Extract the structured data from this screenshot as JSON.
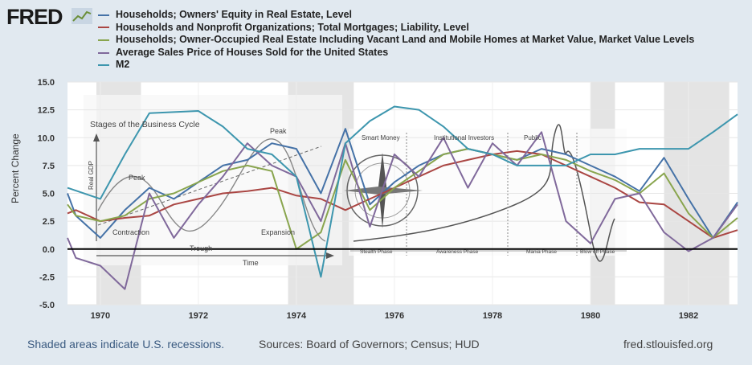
{
  "brand": {
    "logo_text": "FRED"
  },
  "legend": [
    {
      "name": "Households; Owners' Equity in Real Estate, Level",
      "color": "#4572a7"
    },
    {
      "name": "Households and Nonprofit Organizations; Total Mortgages; Liability, Level",
      "color": "#aa4643"
    },
    {
      "name": "Households; Owner-Occupied Real Estate Including Vacant Land and Mobile Homes at Market Value, Market Value Levels",
      "color": "#89a54e"
    },
    {
      "name": "Average Sales Price of Houses Sold for the United States",
      "color": "#80699b"
    },
    {
      "name": "M2",
      "color": "#3d96ae"
    }
  ],
  "footer": {
    "recession_note": "Shaded areas indicate U.S. recessions.",
    "sources": "Sources: Board of Governors; Census; HUD",
    "site": "fred.stlouisfed.org"
  },
  "overlay_labels": {
    "cycle_title": "Stages of the Business Cycle",
    "peak_left": "Peak",
    "peak_right": "Peak",
    "contraction": "Contraction",
    "expansion": "Expansion",
    "trough": "Trough",
    "time": "Time",
    "real_gdp": "Real GDP",
    "smart_money": "Smart Money",
    "institutional": "Institutional Investors",
    "public": "Public",
    "stealth": "Stealth Phase",
    "awareness": "Awareness Phase",
    "mania": "Mania Phase",
    "blowoff": "Blow off Phase"
  },
  "chart_data": {
    "type": "line",
    "ylabel": "Percent Change",
    "xlim": [
      1969.33,
      1983.0
    ],
    "ylim": [
      -5.0,
      15.0
    ],
    "x_ticks": [
      1970,
      1972,
      1974,
      1976,
      1978,
      1980,
      1982
    ],
    "x_tick_labels": [
      "1970",
      "1972",
      "1974",
      "1976",
      "1978",
      "1980",
      "1982"
    ],
    "y_ticks": [
      -5.0,
      -2.5,
      0.0,
      2.5,
      5.0,
      7.5,
      10.0,
      12.5,
      15.0
    ],
    "y_tick_labels": [
      "-5.0",
      "-2.5",
      "0.0",
      "2.5",
      "5.0",
      "7.5",
      "10.0",
      "12.5",
      "15.0"
    ],
    "grid": true,
    "recessions": [
      [
        1969.92,
        1970.83
      ],
      [
        1973.83,
        1975.17
      ],
      [
        1980.0,
        1980.5
      ],
      [
        1981.5,
        1982.83
      ]
    ],
    "series": [
      {
        "name": "Households; Owners' Equity in Real Estate, Level",
        "color": "#4572a7",
        "x": [
          1969.33,
          1969.5,
          1970.0,
          1970.5,
          1971.0,
          1971.5,
          1972.0,
          1972.5,
          1973.0,
          1973.5,
          1974.0,
          1974.5,
          1975.0,
          1975.5,
          1976.0,
          1976.5,
          1977.0,
          1977.5,
          1978.0,
          1978.5,
          1979.0,
          1979.5,
          1980.0,
          1980.5,
          1981.0,
          1981.5,
          1982.0,
          1982.5,
          1983.0
        ],
        "y": [
          5.0,
          3.0,
          1.0,
          3.5,
          5.5,
          4.5,
          6.0,
          7.5,
          8.0,
          9.5,
          9.0,
          5.0,
          10.8,
          4.0,
          6.0,
          7.5,
          8.5,
          9.0,
          8.5,
          8.0,
          9.0,
          8.5,
          7.5,
          6.5,
          5.2,
          8.2,
          4.5,
          1.0,
          4.2
        ]
      },
      {
        "name": "Households and Nonprofit Organizations; Total Mortgages; Liability, Level",
        "color": "#aa4643",
        "x": [
          1969.33,
          1969.5,
          1970.0,
          1970.5,
          1971.0,
          1971.5,
          1972.0,
          1972.5,
          1973.0,
          1973.5,
          1974.0,
          1974.5,
          1975.0,
          1975.5,
          1976.0,
          1976.5,
          1977.0,
          1977.5,
          1978.0,
          1978.5,
          1979.0,
          1979.5,
          1980.0,
          1980.5,
          1981.0,
          1981.5,
          1982.0,
          1982.5,
          1983.0
        ],
        "y": [
          3.2,
          3.5,
          2.5,
          2.8,
          3.0,
          4.0,
          4.5,
          5.0,
          5.2,
          5.5,
          4.8,
          4.5,
          3.5,
          4.5,
          5.5,
          6.5,
          7.5,
          8.0,
          8.5,
          8.8,
          8.5,
          7.5,
          6.5,
          5.5,
          4.2,
          4.0,
          2.5,
          1.0,
          1.7
        ]
      },
      {
        "name": "Households; Owner-Occupied Real Estate Including Vacant Land and Mobile Homes at Market Value, Market Value Levels",
        "color": "#89a54e",
        "x": [
          1969.33,
          1969.5,
          1970.0,
          1970.5,
          1971.0,
          1971.5,
          1972.0,
          1972.5,
          1973.0,
          1973.5,
          1974.0,
          1974.5,
          1975.0,
          1975.5,
          1976.0,
          1976.5,
          1977.0,
          1977.5,
          1978.0,
          1978.5,
          1979.0,
          1979.5,
          1980.0,
          1980.5,
          1981.0,
          1981.5,
          1982.0,
          1982.5,
          1983.0
        ],
        "y": [
          4.0,
          3.0,
          2.5,
          3.0,
          4.5,
          5.0,
          6.0,
          7.0,
          7.5,
          7.0,
          0.0,
          1.5,
          8.0,
          3.5,
          5.5,
          7.0,
          8.5,
          9.0,
          8.5,
          8.0,
          8.5,
          8.0,
          7.0,
          6.2,
          5.0,
          6.8,
          3.2,
          1.0,
          2.8
        ]
      },
      {
        "name": "Average Sales Price of Houses Sold for the United States",
        "color": "#80699b",
        "x": [
          1969.33,
          1969.5,
          1970.0,
          1970.5,
          1971.0,
          1971.5,
          1972.0,
          1972.5,
          1973.0,
          1973.5,
          1974.0,
          1974.5,
          1975.0,
          1975.5,
          1976.0,
          1976.5,
          1977.0,
          1977.5,
          1978.0,
          1978.5,
          1979.0,
          1979.5,
          1980.0,
          1980.5,
          1981.0,
          1981.5,
          1982.0,
          1982.5,
          1983.0
        ],
        "y": [
          1.0,
          -0.8,
          -1.5,
          -3.6,
          5.0,
          1.0,
          4.0,
          6.5,
          9.5,
          7.5,
          6.5,
          2.5,
          9.5,
          2.0,
          8.5,
          6.5,
          10.0,
          5.5,
          9.5,
          7.5,
          10.5,
          2.5,
          0.5,
          4.5,
          5.0,
          1.5,
          -0.2,
          1.0,
          4.0
        ]
      },
      {
        "name": "M2",
        "color": "#3d96ae",
        "x": [
          1969.33,
          1970.0,
          1970.5,
          1971.0,
          1971.5,
          1972.0,
          1972.5,
          1973.0,
          1973.5,
          1974.0,
          1974.5,
          1975.0,
          1975.5,
          1976.0,
          1976.5,
          1977.0,
          1977.5,
          1978.0,
          1978.5,
          1979.0,
          1979.5,
          1980.0,
          1980.5,
          1981.0,
          1981.5,
          1982.0,
          1982.5,
          1983.0
        ],
        "y": [
          5.5,
          4.5,
          8.5,
          12.2,
          12.3,
          12.4,
          11.0,
          9.0,
          8.5,
          6.5,
          -2.5,
          9.5,
          11.5,
          12.8,
          12.5,
          11.0,
          9.0,
          8.5,
          7.5,
          7.5,
          7.5,
          8.5,
          8.5,
          9.0,
          9.0,
          9.0,
          10.5,
          12.1
        ]
      }
    ]
  }
}
